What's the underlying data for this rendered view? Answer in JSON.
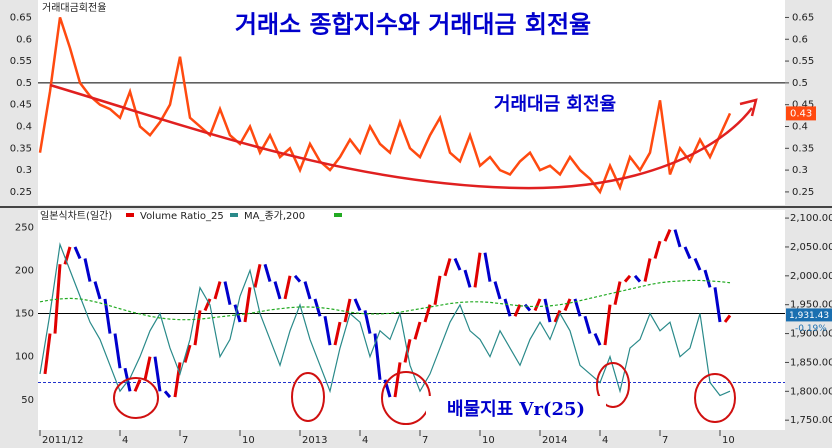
{
  "chart_data": [
    {
      "type": "line",
      "title": "거래소 종합지수와 거래대금 회전율",
      "panel_label": "거래대금회전율",
      "annotation": "거래대금 회전율",
      "series": [
        {
          "name": "거래대금회전율",
          "color": "#ff4a10",
          "values": [
            0.34,
            0.48,
            0.65,
            0.58,
            0.5,
            0.47,
            0.45,
            0.44,
            0.42,
            0.48,
            0.4,
            0.38,
            0.41,
            0.45,
            0.56,
            0.42,
            0.4,
            0.38,
            0.44,
            0.38,
            0.36,
            0.4,
            0.34,
            0.38,
            0.33,
            0.35,
            0.3,
            0.36,
            0.32,
            0.3,
            0.33,
            0.37,
            0.34,
            0.4,
            0.36,
            0.34,
            0.41,
            0.35,
            0.33,
            0.38,
            0.42,
            0.34,
            0.32,
            0.38,
            0.31,
            0.33,
            0.3,
            0.29,
            0.32,
            0.34,
            0.3,
            0.31,
            0.29,
            0.33,
            0.3,
            0.28,
            0.25,
            0.31,
            0.26,
            0.33,
            0.3,
            0.34,
            0.46,
            0.29,
            0.35,
            0.32,
            0.37,
            0.33,
            0.38,
            0.43
          ]
        }
      ],
      "ylim": [
        0.22,
        0.69
      ],
      "yticks": [
        0.25,
        0.3,
        0.35,
        0.4,
        0.45,
        0.5,
        0.55,
        0.6,
        0.65
      ],
      "hlines": [
        0.5
      ],
      "last_value": 0.43
    },
    {
      "type": "candlestick",
      "annotation": "배물지표 Vr(25)",
      "series": [
        {
          "name": "일본식차트(일간)",
          "axis": "y2",
          "up_color": "#e00000",
          "down_color": "#0000cc",
          "values": [
            1830,
            1900,
            2020,
            2050,
            2030,
            1990,
            1960,
            1900,
            1840,
            1800,
            1820,
            1860,
            1800,
            1790,
            1850,
            1880,
            1940,
            1960,
            1990,
            1950,
            1920,
            1980,
            2020,
            1990,
            1960,
            2000,
            1990,
            1960,
            1930,
            1880,
            1920,
            1960,
            1940,
            1900,
            1820,
            1790,
            1850,
            1890,
            1920,
            1950,
            2000,
            2030,
            2010,
            1980,
            2040,
            1990,
            1960,
            1930,
            1950,
            1940,
            1960,
            1920,
            1940,
            1960,
            1930,
            1900,
            1880,
            1950,
            1990,
            2000,
            1990,
            2030,
            2060,
            2080,
            2050,
            2030,
            2010,
            1980,
            1920,
            1931.43
          ]
        },
        {
          "name": "Volume Ratio_25",
          "color": "#2a8a8a",
          "values": [
            80,
            150,
            230,
            200,
            170,
            140,
            120,
            90,
            60,
            75,
            100,
            130,
            150,
            110,
            80,
            120,
            180,
            160,
            100,
            120,
            170,
            200,
            150,
            120,
            90,
            130,
            160,
            120,
            90,
            60,
            110,
            150,
            140,
            100,
            130,
            120,
            150,
            90,
            60,
            80,
            110,
            140,
            160,
            130,
            120,
            100,
            130,
            110,
            90,
            120,
            140,
            120,
            150,
            130,
            90,
            80,
            70,
            100,
            60,
            110,
            120,
            150,
            130,
            140,
            100,
            110,
            150,
            70,
            55,
            60
          ]
        },
        {
          "name": "MA_종가,200",
          "axis": "y2",
          "color": "#22aa22",
          "values": [
            1955,
            1958,
            1960,
            1961,
            1960,
            1957,
            1953,
            1948,
            1943,
            1938,
            1934,
            1930,
            1927,
            1925,
            1924,
            1924,
            1925,
            1927,
            1929,
            1931,
            1933,
            1935,
            1938,
            1941,
            1943,
            1945,
            1946,
            1946,
            1945,
            1943,
            1940,
            1937,
            1935,
            1934,
            1934,
            1935,
            1937,
            1940,
            1943,
            1946,
            1949,
            1952,
            1954,
            1955,
            1955,
            1954,
            1952,
            1950,
            1948,
            1947,
            1947,
            1948,
            1950,
            1953,
            1957,
            1961,
            1965,
            1969,
            1973,
            1977,
            1981,
            1985,
            1988,
            1990,
            1991,
            1992,
            1992,
            1991,
            1990,
            1988
          ]
        }
      ],
      "ylim": [
        15,
        270
      ],
      "yticks": [
        50,
        100,
        150,
        200,
        250
      ],
      "y2lim": [
        1733,
        2114
      ],
      "y2ticks": [
        {
          "value": 1750,
          "label": "1,750.00"
        },
        {
          "value": 1800,
          "label": "1,800.00"
        },
        {
          "value": 1850,
          "label": "1,850.00"
        },
        {
          "value": 1900,
          "label": "1,900.00"
        },
        {
          "value": 1950,
          "label": "1,950.00"
        },
        {
          "value": 2000,
          "label": "2,000.00"
        },
        {
          "value": 2050,
          "label": "2,050.00"
        },
        {
          "value": 2100,
          "label": "2,100.00"
        }
      ],
      "hlines": [
        {
          "value": 150,
          "color": "#000000"
        },
        {
          "value": 70,
          "color": "#2233cc"
        }
      ],
      "last_value": {
        "value": 1931.43,
        "label": "1,931.43"
      },
      "last_change": "-0.19%",
      "xticks": [
        {
          "value": 0,
          "label": "2011/12"
        },
        {
          "value": 8,
          "label": "4"
        },
        {
          "value": 14,
          "label": "7"
        },
        {
          "value": 20,
          "label": "10"
        },
        {
          "value": 26,
          "label": "2013"
        },
        {
          "value": 32,
          "label": "4"
        },
        {
          "value": 38,
          "label": "7"
        },
        {
          "value": 44,
          "label": "10"
        },
        {
          "value": 50,
          "label": "2014"
        },
        {
          "value": 56,
          "label": "4"
        },
        {
          "value": 62,
          "label": "7"
        },
        {
          "value": 68,
          "label": "10"
        }
      ]
    }
  ]
}
